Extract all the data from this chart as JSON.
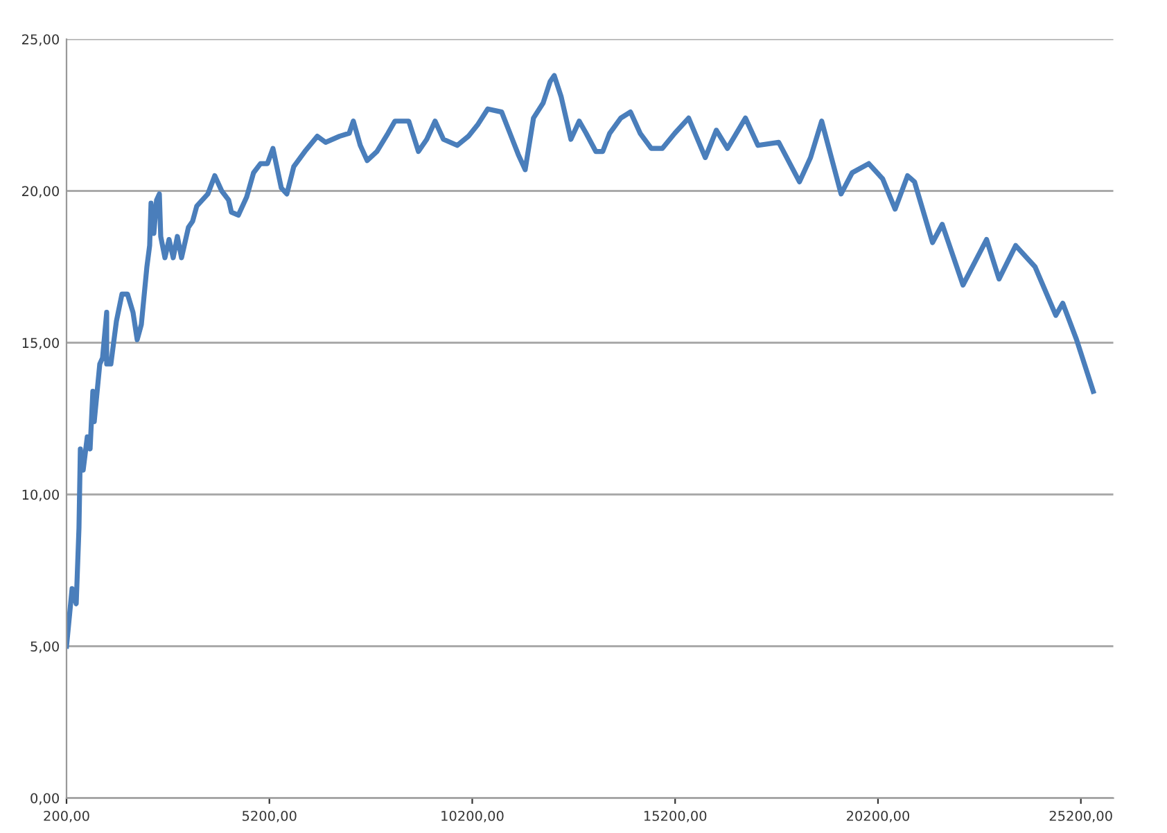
{
  "chart_data": {
    "type": "line",
    "x": [
      200,
      337,
      439,
      507,
      541,
      610,
      712,
      781,
      849,
      883,
      1020,
      1088,
      1190,
      1190,
      1293,
      1429,
      1566,
      1703,
      1839,
      1942,
      2044,
      2181,
      2249,
      2283,
      2352,
      2420,
      2488,
      2522,
      2625,
      2727,
      2830,
      2932,
      3034,
      3205,
      3308,
      3410,
      3683,
      3854,
      4025,
      4195,
      4264,
      4435,
      4640,
      4810,
      4981,
      5152,
      5288,
      5493,
      5630,
      5801,
      6074,
      6381,
      6586,
      6928,
      7167,
      7269,
      7440,
      7611,
      7850,
      8123,
      8294,
      8635,
      8874,
      9079,
      9284,
      9489,
      9830,
      10104,
      10343,
      10582,
      10924,
      11129,
      11334,
      11504,
      11709,
      11948,
      12118,
      12221,
      12392,
      12631,
      12836,
      13006,
      13245,
      13416,
      13587,
      13860,
      14099,
      14338,
      14611,
      14884,
      15192,
      15533,
      15943,
      16216,
      16489,
      16933,
      17241,
      17753,
      18265,
      18538,
      18812,
      19290,
      19563,
      19973,
      20314,
      20622,
      20929,
      21100,
      21544,
      21783,
      22295,
      22876,
      23183,
      23593,
      24071,
      24583,
      24754,
      25094,
      25505
    ],
    "series": [
      {
        "color": "#4a7ebb",
        "values": [
          5.0,
          6.9,
          6.4,
          8.9,
          11.5,
          10.8,
          11.9,
          11.5,
          13.4,
          12.4,
          14.3,
          14.5,
          16.0,
          14.3,
          14.3,
          15.7,
          16.6,
          16.6,
          16.0,
          15.1,
          15.6,
          17.5,
          18.2,
          19.6,
          18.6,
          19.7,
          19.9,
          18.5,
          17.8,
          18.4,
          17.8,
          18.5,
          17.8,
          18.8,
          19.0,
          19.5,
          19.9,
          20.5,
          20.0,
          19.7,
          19.3,
          19.2,
          19.8,
          20.6,
          20.9,
          20.9,
          21.4,
          20.1,
          19.9,
          20.8,
          21.3,
          21.8,
          21.6,
          21.8,
          21.9,
          22.3,
          21.5,
          21.0,
          21.3,
          21.9,
          22.3,
          22.3,
          21.3,
          21.7,
          22.3,
          21.7,
          21.5,
          21.8,
          22.2,
          22.7,
          22.6,
          21.9,
          21.2,
          20.7,
          22.4,
          22.9,
          23.6,
          23.8,
          23.1,
          21.7,
          22.3,
          21.9,
          21.3,
          21.3,
          21.9,
          22.4,
          22.6,
          21.9,
          21.4,
          21.4,
          21.9,
          22.4,
          21.1,
          22.0,
          21.4,
          22.4,
          21.5,
          21.6,
          20.3,
          21.1,
          22.3,
          19.9,
          20.6,
          20.9,
          20.4,
          19.4,
          20.5,
          20.3,
          18.3,
          18.9,
          16.9,
          18.4,
          17.1,
          18.2,
          17.5,
          15.9,
          16.3,
          15.1,
          13.4
        ]
      }
    ],
    "xlim": [
      200,
      26000
    ],
    "xticks": [
      {
        "value": 200,
        "label": "200,00"
      },
      {
        "value": 5200,
        "label": "5200,00"
      },
      {
        "value": 10200,
        "label": "10200,00"
      },
      {
        "value": 15200,
        "label": "15200,00"
      },
      {
        "value": 20200,
        "label": "20200,00"
      },
      {
        "value": 25200,
        "label": "25200,00"
      }
    ],
    "ylim": [
      0,
      25
    ],
    "yticks": [
      {
        "value": 0,
        "label": "0,00"
      },
      {
        "value": 5,
        "label": "5,00"
      },
      {
        "value": 10,
        "label": "10,00"
      },
      {
        "value": 15,
        "label": "15,00"
      },
      {
        "value": 20,
        "label": "20,00"
      },
      {
        "value": 25,
        "label": "25,00"
      }
    ],
    "grid": "y",
    "legend": false,
    "marker": "none",
    "line_style": "solid"
  }
}
